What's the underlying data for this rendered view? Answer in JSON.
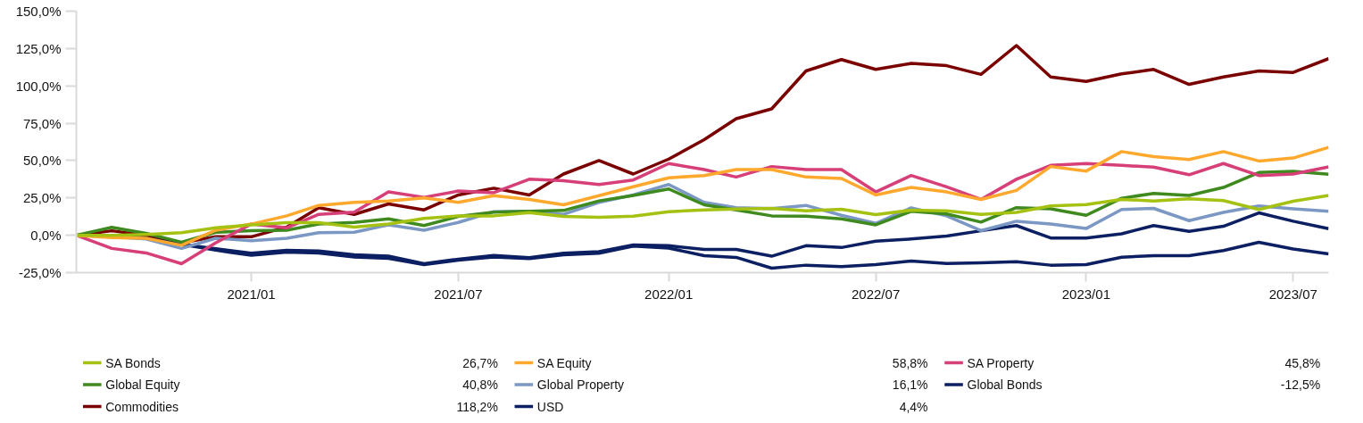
{
  "chart_data": {
    "type": "line",
    "x": [
      "2020-08",
      "2020-09",
      "2020-10",
      "2020-11",
      "2020-12",
      "2021-01",
      "2021-02",
      "2021-03",
      "2021-04",
      "2021-05",
      "2021-06",
      "2021-07",
      "2021-08",
      "2021-09",
      "2021-10",
      "2021-11",
      "2021-12",
      "2022-01",
      "2022-02",
      "2022-03",
      "2022-04",
      "2022-05",
      "2022-06",
      "2022-07",
      "2022-08",
      "2022-09",
      "2022-10",
      "2022-11",
      "2022-12",
      "2023-01",
      "2023-02",
      "2023-03",
      "2023-04",
      "2023-05",
      "2023-06",
      "2023-07",
      "2023-08"
    ],
    "series": [
      {
        "name": "SA Bonds",
        "color": "#a5c213",
        "values": [
          0,
          0,
          0.6,
          1.7,
          5,
          7,
          8.4,
          8.4,
          5.5,
          7.6,
          11.3,
          13,
          13,
          15.2,
          12.6,
          12,
          12.8,
          15.8,
          17,
          17.6,
          18,
          16.4,
          17.4,
          13.8,
          16.8,
          16.3,
          14,
          15.3,
          19.6,
          20.6,
          24,
          23,
          24.4,
          23.2,
          17.3,
          22.8,
          26.7
        ]
      },
      {
        "name": "SA Equity",
        "color": "#ffa82e",
        "values": [
          0,
          -1.5,
          -2,
          -6.7,
          3.4,
          7.5,
          13,
          20,
          22,
          23,
          25,
          22,
          26.5,
          24,
          20.4,
          26.5,
          32.5,
          38.5,
          40,
          44,
          44,
          39,
          38,
          27,
          32,
          29,
          24,
          30,
          46,
          43,
          56,
          52.6,
          50.7,
          56,
          49.7,
          51.7,
          58.8
        ]
      },
      {
        "name": "SA Property",
        "color": "#d63f78",
        "values": [
          0,
          -8.8,
          -11.8,
          -19,
          -5,
          7.5,
          5,
          14,
          15.5,
          29,
          25.4,
          29.6,
          28.5,
          37.5,
          36.5,
          34,
          37,
          48,
          44,
          39,
          46,
          44,
          44,
          29,
          40,
          32.4,
          24,
          37.5,
          46.8,
          48,
          46.8,
          45.6,
          40.5,
          48,
          40,
          41,
          45.8
        ]
      },
      {
        "name": "Global Equity",
        "color": "#3e8a1e",
        "values": [
          0,
          5.3,
          1.3,
          -4.6,
          2,
          3,
          3.4,
          7.6,
          8.6,
          11,
          6.5,
          12.6,
          15.4,
          16,
          16.6,
          23,
          26.7,
          31,
          20.4,
          17,
          13,
          12.8,
          11,
          7,
          16,
          14.3,
          8.8,
          18.5,
          17.7,
          13.4,
          24.8,
          28,
          26.7,
          32,
          42,
          42.8,
          40.8
        ]
      },
      {
        "name": "Global Property",
        "color": "#7b98c4",
        "values": [
          0,
          -1,
          -2.5,
          -8.8,
          -2,
          -3.6,
          -2,
          1.7,
          2,
          7,
          3.4,
          8.6,
          15.8,
          16,
          14,
          22,
          27,
          34,
          22,
          18.4,
          17.8,
          20,
          13.4,
          8,
          18.4,
          13,
          3.1,
          9.4,
          7.5,
          4.5,
          17.3,
          18,
          9.8,
          15.3,
          19.6,
          17.7,
          16.1
        ]
      },
      {
        "name": "Global Bonds",
        "color": "#0c1f62",
        "values": [
          0,
          0,
          -2,
          -6,
          -10,
          -13.4,
          -11.3,
          -11.8,
          -14.5,
          -15.5,
          -19.7,
          -16.6,
          -14.6,
          -15.6,
          -13,
          -12,
          -7.2,
          -8.6,
          -13.6,
          -14.8,
          -22,
          -20,
          -21,
          -19.6,
          -17.2,
          -18.9,
          -18.5,
          -17.7,
          -20,
          -19.6,
          -14.7,
          -13.6,
          -13.6,
          -10.2,
          -4.7,
          -9.2,
          -12.5
        ]
      },
      {
        "name": "Commodities",
        "color": "#7a0000",
        "values": [
          0,
          3,
          0,
          -5,
          -1,
          -1,
          5.5,
          18.5,
          14,
          21,
          17,
          27,
          31.5,
          27,
          41,
          50,
          41,
          51,
          64,
          78,
          84.6,
          110,
          117.6,
          111,
          115,
          113.5,
          107.7,
          127,
          106,
          103,
          108,
          111,
          101,
          106,
          110,
          109,
          118.2
        ]
      },
      {
        "name": "USD",
        "color": "#0c1f62",
        "values": [
          0,
          0,
          -2,
          -6,
          -9,
          -12,
          -10,
          -10.5,
          -13,
          -14,
          -19,
          -16,
          -13.5,
          -15,
          -12,
          -11,
          -6.5,
          -7,
          -9.5,
          -9.5,
          -14,
          -7,
          -8.2,
          -4,
          -2.5,
          -0.5,
          3,
          6.5,
          -1.8,
          -1.8,
          1,
          6.5,
          2.6,
          6,
          15,
          9.4,
          4.4
        ]
      }
    ],
    "xlim": [
      "2020-08",
      "2023-08"
    ],
    "xticks": [
      {
        "value": "2021-01",
        "label": "2021/01"
      },
      {
        "value": "2021-07",
        "label": "2021/07"
      },
      {
        "value": "2022-01",
        "label": "2022/01"
      },
      {
        "value": "2022-07",
        "label": "2022/07"
      },
      {
        "value": "2023-01",
        "label": "2023/01"
      },
      {
        "value": "2023-07",
        "label": "2023/07"
      }
    ],
    "ylim": [
      -25,
      150
    ],
    "yticks": [
      {
        "value": -25,
        "label": "-25,0%"
      },
      {
        "value": 0,
        "label": "0,0%"
      },
      {
        "value": 25,
        "label": "25,0%"
      },
      {
        "value": 50,
        "label": "50,0%"
      },
      {
        "value": 75,
        "label": "75,0%"
      },
      {
        "value": 100,
        "label": "100,0%"
      },
      {
        "value": 125,
        "label": "125,0%"
      },
      {
        "value": 150,
        "label": "150,0%"
      }
    ],
    "annotations": [
      "26,7%",
      "58,8%",
      "45,8%",
      "40,8%",
      "16,1%",
      "-12,5%",
      "118,2%",
      "4,4%"
    ],
    "grid": false,
    "legend": "bottom",
    "line_style": "solid",
    "marker": "none"
  }
}
